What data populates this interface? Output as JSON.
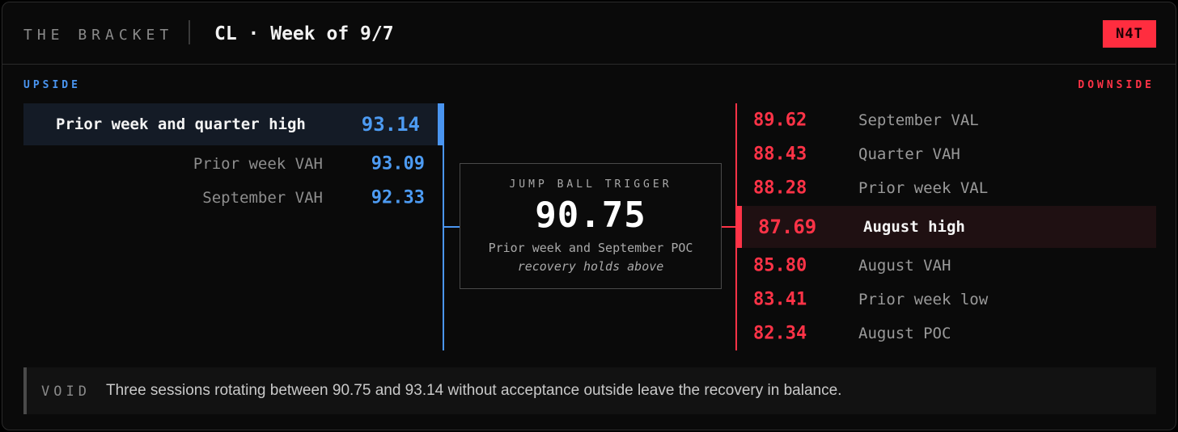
{
  "header": {
    "brand": "THE BRACKET",
    "title": "CL · Week of 9/7",
    "badge": "N4T"
  },
  "upside": {
    "label": "UPSIDE",
    "items": [
      {
        "label": "Prior week and quarter high",
        "value": "93.14",
        "highlight": true
      },
      {
        "label": "Prior week VAH",
        "value": "93.09"
      },
      {
        "label": "September VAH",
        "value": "92.33"
      }
    ]
  },
  "trigger": {
    "title": "JUMP BALL TRIGGER",
    "value": "90.75",
    "description": "Prior week and September POC",
    "note": "recovery holds above"
  },
  "downside": {
    "label": "DOWNSIDE",
    "items": [
      {
        "value": "89.62",
        "label": "September VAL"
      },
      {
        "value": "88.43",
        "label": "Quarter VAH"
      },
      {
        "value": "88.28",
        "label": "Prior week VAL"
      },
      {
        "value": "87.69",
        "label": "August high",
        "highlight": true
      },
      {
        "value": "85.80",
        "label": "August VAH"
      },
      {
        "value": "83.41",
        "label": "Prior week low"
      },
      {
        "value": "82.34",
        "label": "August POC"
      }
    ]
  },
  "void": {
    "tag": "VOID",
    "text": "Three sessions rotating between 90.75 and 93.14 without acceptance outside leave the recovery in balance."
  },
  "colors": {
    "upside": "#4a95f0",
    "downside": "#ff3347",
    "badge": "#ff2d3f"
  }
}
